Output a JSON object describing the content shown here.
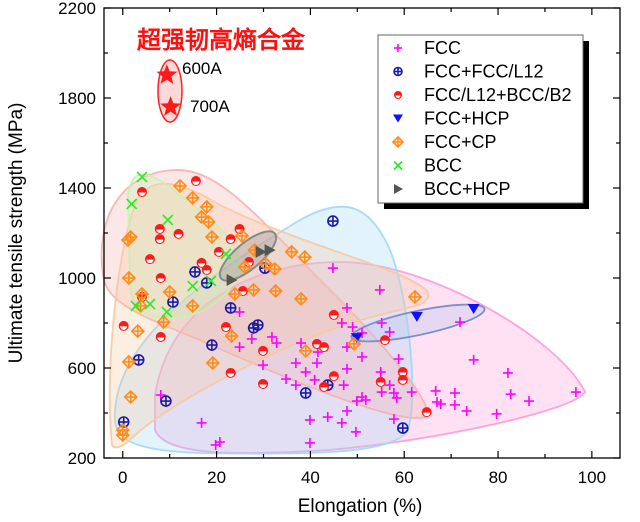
{
  "chart_data": {
    "type": "scatter",
    "title": "超强韧高熵合金",
    "xlabel": "Elongation (%)",
    "ylabel": "Ultimate tensile strength (MPa)",
    "xlim": [
      -4,
      106
    ],
    "ylim": [
      200,
      2200
    ],
    "xticks": [
      "0",
      "20",
      "40",
      "60",
      "80",
      "100"
    ],
    "yticks": [
      "200",
      "600",
      "1000",
      "1400",
      "1800",
      "2200"
    ],
    "grid": false,
    "legend_position": "top-right",
    "series": [
      {
        "name": "FCC",
        "marker": "plus",
        "color": "#ff00ff",
        "hull_color": "#ff9ad8",
        "points": [
          [
            44.8,
            1044
          ],
          [
            54.8,
            947
          ],
          [
            47.8,
            867
          ],
          [
            24.9,
            849
          ],
          [
            46.7,
            800
          ],
          [
            49.0,
            782
          ],
          [
            51.0,
            756
          ],
          [
            56.9,
            760
          ],
          [
            55.2,
            800
          ],
          [
            71.9,
            804
          ],
          [
            27.5,
            729
          ],
          [
            31.8,
            738
          ],
          [
            32.8,
            711
          ],
          [
            38.0,
            711
          ],
          [
            47.8,
            693
          ],
          [
            24.9,
            693
          ],
          [
            41.6,
            671
          ],
          [
            51.0,
            649
          ],
          [
            58.8,
            640
          ],
          [
            74.8,
            636
          ],
          [
            82.1,
            578
          ],
          [
            29.9,
            613
          ],
          [
            36.9,
            622
          ],
          [
            41.4,
            622
          ],
          [
            47.8,
            596
          ],
          [
            55.0,
            582
          ],
          [
            39.0,
            582
          ],
          [
            34.8,
            551
          ],
          [
            40.9,
            547
          ],
          [
            36.9,
            524
          ],
          [
            47.1,
            524
          ],
          [
            56.9,
            524
          ],
          [
            55.2,
            493
          ],
          [
            57.8,
            489
          ],
          [
            61.6,
            493
          ],
          [
            66.7,
            498
          ],
          [
            70.8,
            489
          ],
          [
            82.7,
            484
          ],
          [
            86.6,
            453
          ],
          [
            96.6,
            493
          ],
          [
            51.0,
            471
          ],
          [
            49.9,
            453
          ],
          [
            51.8,
            458
          ],
          [
            58.4,
            467
          ],
          [
            67.0,
            449
          ],
          [
            67.8,
            440
          ],
          [
            70.8,
            436
          ],
          [
            73.3,
            409
          ],
          [
            79.7,
            396
          ],
          [
            47.8,
            409
          ],
          [
            43.7,
            382
          ],
          [
            39.9,
            369
          ],
          [
            46.7,
            356
          ],
          [
            57.8,
            373
          ],
          [
            49.7,
            316
          ],
          [
            16.8,
            356
          ],
          [
            8.1,
            480
          ],
          [
            39.9,
            267
          ],
          [
            19.8,
            258
          ],
          [
            20.7,
            271
          ]
        ]
      },
      {
        "name": "FCC+FCC/L12",
        "marker": "circle-plus",
        "color": "#1a1aa8",
        "hull_color": "#9fd8f5",
        "points": [
          [
            44.8,
            1253
          ],
          [
            15.4,
            1027
          ],
          [
            17.9,
            978
          ],
          [
            30.3,
            1044
          ],
          [
            10.7,
            893
          ],
          [
            23.0,
            867
          ],
          [
            27.9,
            778
          ],
          [
            28.8,
            791
          ],
          [
            19.0,
            702
          ],
          [
            3.4,
            636
          ],
          [
            39.0,
            489
          ],
          [
            43.7,
            524
          ],
          [
            9.2,
            453
          ],
          [
            0.2,
            360
          ],
          [
            59.7,
            333
          ]
        ]
      },
      {
        "name": "FCC/L12+BCC/B2",
        "marker": "half-circle",
        "color": "#ff1a1a",
        "hull_color": "#f4b0b0",
        "points": [
          [
            15.6,
            1431
          ],
          [
            4.1,
            1382
          ],
          [
            7.9,
            1218
          ],
          [
            7.9,
            1173
          ],
          [
            11.9,
            1196
          ],
          [
            5.8,
            1084
          ],
          [
            8.1,
            1000
          ],
          [
            16.8,
            1067
          ],
          [
            17.9,
            1036
          ],
          [
            24.9,
            1218
          ],
          [
            23.0,
            1173
          ],
          [
            20.5,
            1116
          ],
          [
            26.9,
            1071
          ],
          [
            25.6,
            942
          ],
          [
            4.1,
            916
          ],
          [
            0.2,
            787
          ],
          [
            22.0,
            782
          ],
          [
            8.1,
            738
          ],
          [
            45.0,
            836
          ],
          [
            41.4,
            707
          ],
          [
            42.9,
            693
          ],
          [
            29.9,
            676
          ],
          [
            23.0,
            578
          ],
          [
            29.9,
            529
          ],
          [
            45.0,
            564
          ],
          [
            42.9,
            516
          ],
          [
            55.0,
            538
          ],
          [
            55.9,
            724
          ],
          [
            59.7,
            582
          ],
          [
            59.7,
            547
          ],
          [
            64.8,
            404
          ]
        ]
      },
      {
        "name": "FCC+HCP",
        "marker": "triangle-down",
        "color": "#1010ff",
        "hull_color": "#b8c8f0",
        "points": [
          [
            62.7,
            827
          ],
          [
            74.8,
            862
          ],
          [
            49.9,
            733
          ]
        ]
      },
      {
        "name": "FCC+CP",
        "marker": "diamond-plus",
        "color": "#ff8c1a",
        "hull_color": "#f8c8a0",
        "points": [
          [
            12.2,
            1409
          ],
          [
            14.9,
            1356
          ],
          [
            17.9,
            1316
          ],
          [
            16.8,
            1271
          ],
          [
            18.3,
            1249
          ],
          [
            19.0,
            1182
          ],
          [
            1.7,
            1182
          ],
          [
            1.1,
            1169
          ],
          [
            1.3,
            1000
          ],
          [
            4.1,
            929
          ],
          [
            3.8,
            876
          ],
          [
            10.0,
            938
          ],
          [
            14.9,
            876
          ],
          [
            8.7,
            804
          ],
          [
            25.4,
            1187
          ],
          [
            26.0,
            1049
          ],
          [
            28.1,
            1124
          ],
          [
            30.5,
            1062
          ],
          [
            32.4,
            1040
          ],
          [
            36.0,
            1116
          ],
          [
            38.8,
            1093
          ],
          [
            23.9,
            929
          ],
          [
            27.9,
            947
          ],
          [
            32.6,
            942
          ],
          [
            38.0,
            907
          ],
          [
            62.3,
            916
          ],
          [
            3.2,
            764
          ],
          [
            23.2,
            742
          ],
          [
            39.0,
            676
          ],
          [
            19.2,
            622
          ],
          [
            1.3,
            627
          ],
          [
            1.7,
            471
          ],
          [
            0,
            324
          ],
          [
            0,
            302
          ],
          [
            49.3,
            707
          ]
        ]
      },
      {
        "name": "BCC",
        "marker": "x",
        "color": "#22ee22",
        "hull_color": "#c8f0b0",
        "points": [
          [
            4.1,
            1449
          ],
          [
            1.9,
            1329
          ],
          [
            9.6,
            1258
          ],
          [
            22.0,
            1107
          ],
          [
            18.8,
            987
          ],
          [
            14.9,
            964
          ],
          [
            9.4,
            849
          ],
          [
            2.8,
            876
          ],
          [
            5.8,
            884
          ]
        ]
      },
      {
        "name": "BCC+HCP",
        "marker": "triangle-right",
        "color": "#555555",
        "hull_color": "#a0a0a0",
        "points": [
          [
            29.4,
            1116
          ],
          [
            31.3,
            1124
          ],
          [
            23.2,
            991
          ]
        ]
      }
    ],
    "annotations": [
      {
        "label": "600A",
        "x": 9.4,
        "y": 1902,
        "marker": "star",
        "color": "#ff1a1a"
      },
      {
        "label": "700A",
        "x": 10.2,
        "y": 1760,
        "marker": "star",
        "color": "#ff1a1a"
      }
    ]
  }
}
